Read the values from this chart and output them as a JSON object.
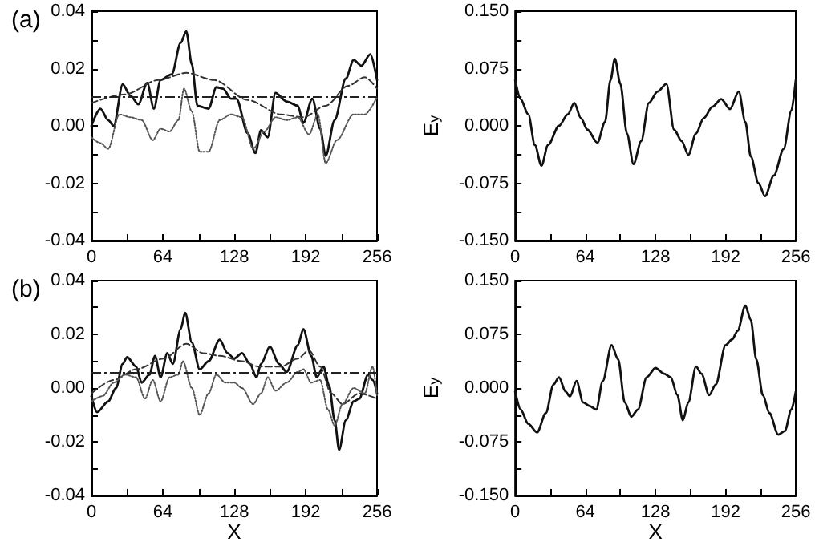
{
  "chart_data": [
    {
      "type": "line",
      "title": "(a)",
      "marker": "none",
      "xlim": [
        0,
        256
      ],
      "ylim": [
        -0.04,
        0.04
      ],
      "xticks": [
        0,
        {
          "value": 32,
          "label": null
        },
        64,
        {
          "value": 96,
          "label": null
        },
        128,
        {
          "value": 160,
          "label": null
        },
        192,
        {
          "value": 224,
          "label": null
        },
        256
      ],
      "yticks": [
        {
          "value": -0.04,
          "label": "-0.04"
        },
        {
          "value": -0.03,
          "label": null
        },
        {
          "value": -0.02,
          "label": "-0.02"
        },
        {
          "value": -0.01,
          "label": null
        },
        {
          "value": 0,
          "label": "0.00"
        },
        {
          "value": 0.01,
          "label": null
        },
        {
          "value": 0.02,
          "label": "0.02"
        },
        {
          "value": 0.03,
          "label": null
        },
        {
          "value": 0.04,
          "label": "0.04"
        }
      ],
      "ref_lines": [
        {
          "axis": "y",
          "value": 0.01,
          "color": "#222222",
          "line_style": "dashed"
        }
      ],
      "series": [
        {
          "color": "#111111",
          "line_style": "solid",
          "x": [
            0,
            8,
            15,
            20,
            28,
            35,
            42,
            50,
            56,
            62,
            72,
            80,
            85,
            90,
            95,
            105,
            112,
            118,
            125,
            130,
            140,
            147,
            152,
            158,
            165,
            175,
            185,
            190,
            198,
            205,
            210,
            218,
            228,
            235,
            242,
            250,
            256
          ],
          "values": [
            0.0,
            0.006,
            0.002,
            0.0,
            0.0145,
            0.0105,
            0.0075,
            0.015,
            0.006,
            0.016,
            0.018,
            0.029,
            0.033,
            0.0215,
            0.007,
            0.006,
            0.0135,
            0.013,
            0.0095,
            0.0095,
            -0.0025,
            -0.0095,
            -0.0015,
            -0.004,
            0.0115,
            0.0085,
            0.007,
            0.001,
            0.0095,
            -0.001,
            -0.0105,
            0.002,
            0.0165,
            0.023,
            0.021,
            0.025,
            0.016
          ]
        },
        {
          "color": "#333333",
          "line_style": "dashed",
          "x": [
            0,
            30,
            60,
            85,
            110,
            140,
            170,
            190,
            210,
            230,
            245,
            256
          ],
          "values": [
            0.008,
            0.011,
            0.016,
            0.0185,
            0.016,
            0.009,
            0.004,
            0.003,
            0.007,
            0.014,
            0.017,
            0.013
          ]
        },
        {
          "color": "#555555",
          "line_style": "dotted",
          "x": [
            0,
            8,
            15,
            25,
            35,
            45,
            55,
            62,
            70,
            78,
            83,
            90,
            97,
            105,
            115,
            125,
            135,
            145,
            155,
            165,
            175,
            185,
            195,
            203,
            210,
            220,
            235,
            245,
            256
          ],
          "values": [
            -0.004,
            -0.006,
            -0.008,
            0.004,
            0.003,
            0.002,
            -0.005,
            -0.001,
            -0.002,
            0.002,
            0.013,
            0.005,
            -0.009,
            -0.009,
            0.002,
            0.004,
            0.003,
            -0.008,
            -0.002,
            0.003,
            0.002,
            0.003,
            -0.003,
            0.004,
            -0.013,
            -0.005,
            0.004,
            0.004,
            0.01
          ]
        }
      ]
    },
    {
      "type": "line",
      "ylabel": "E$_{y}$",
      "marker": "none",
      "xlim": [
        0,
        256
      ],
      "ylim": [
        -0.15,
        0.15
      ],
      "xticks": [
        0,
        {
          "value": 32,
          "label": null
        },
        64,
        {
          "value": 96,
          "label": null
        },
        128,
        {
          "value": 160,
          "label": null
        },
        192,
        {
          "value": 224,
          "label": null
        },
        256
      ],
      "yticks": [
        {
          "value": -0.15,
          "label": "-0.150"
        },
        {
          "value": -0.1125,
          "label": null
        },
        {
          "value": -0.075,
          "label": "-0.075"
        },
        {
          "value": -0.0375,
          "label": null
        },
        {
          "value": 0,
          "label": "0.000"
        },
        {
          "value": 0.0375,
          "label": null
        },
        {
          "value": 0.075,
          "label": "0.075"
        },
        {
          "value": 0.1125,
          "label": null
        },
        {
          "value": 0.15,
          "label": "0.150"
        }
      ],
      "series": [
        {
          "color": "#111111",
          "line_style": "solid",
          "x": [
            0,
            5,
            12,
            18,
            24,
            30,
            40,
            48,
            54,
            60,
            66,
            75,
            82,
            87,
            91,
            96,
            102,
            108,
            115,
            122,
            130,
            138,
            145,
            152,
            158,
            165,
            172,
            180,
            188,
            196,
            204,
            210,
            215,
            222,
            228,
            236,
            245,
            252,
            256
          ],
          "values": [
            0.06,
            0.035,
            0.015,
            -0.025,
            -0.052,
            -0.025,
            0.0,
            0.015,
            0.03,
            0.01,
            -0.005,
            -0.022,
            0.005,
            0.06,
            0.088,
            0.055,
            -0.01,
            -0.05,
            -0.02,
            0.03,
            0.045,
            0.055,
            -0.005,
            -0.02,
            -0.038,
            -0.01,
            0.01,
            0.025,
            0.035,
            0.022,
            0.045,
            0.005,
            -0.04,
            -0.075,
            -0.092,
            -0.065,
            -0.03,
            0.02,
            0.06
          ]
        }
      ]
    },
    {
      "type": "line",
      "title": "(b)",
      "xlabel": "X",
      "marker": "none",
      "xlim": [
        0,
        256
      ],
      "ylim": [
        -0.04,
        0.04
      ],
      "xticks": [
        0,
        {
          "value": 32,
          "label": null
        },
        64,
        {
          "value": 96,
          "label": null
        },
        128,
        {
          "value": 160,
          "label": null
        },
        192,
        {
          "value": 224,
          "label": null
        },
        256
      ],
      "yticks": [
        {
          "value": -0.04,
          "label": "-0.04"
        },
        {
          "value": -0.03,
          "label": null
        },
        {
          "value": -0.02,
          "label": "-0.02"
        },
        {
          "value": -0.01,
          "label": null
        },
        {
          "value": 0,
          "label": "0.00"
        },
        {
          "value": 0.01,
          "label": null
        },
        {
          "value": 0.02,
          "label": "0.02"
        },
        {
          "value": 0.03,
          "label": null
        },
        {
          "value": 0.04,
          "label": "0.04"
        }
      ],
      "ref_lines": [
        {
          "axis": "y",
          "value": 0.006,
          "color": "#222222",
          "line_style": "dashed"
        }
      ],
      "series": [
        {
          "color": "#111111",
          "line_style": "solid",
          "x": [
            0,
            5,
            15,
            22,
            28,
            32,
            40,
            45,
            52,
            57,
            62,
            68,
            73,
            80,
            84,
            90,
            97,
            105,
            115,
            122,
            128,
            135,
            142,
            148,
            152,
            160,
            168,
            175,
            185,
            190,
            197,
            202,
            208,
            213,
            218,
            222,
            228,
            235,
            240,
            248,
            252,
            256
          ],
          "values": [
            -0.003,
            -0.009,
            -0.005,
            0.0,
            0.009,
            0.0115,
            0.008,
            0.002,
            0.005,
            0.012,
            0.004,
            0.013,
            0.009,
            0.022,
            0.028,
            0.017,
            0.007,
            0.01,
            0.018,
            0.013,
            0.011,
            0.013,
            0.009,
            0.004,
            0.009,
            0.0155,
            0.009,
            0.006,
            0.016,
            0.022,
            0.012,
            0.004,
            0.008,
            0.001,
            -0.012,
            -0.023,
            -0.012,
            -0.005,
            -0.004,
            0.005,
            0.003,
            -0.002
          ]
        },
        {
          "color": "#333333",
          "line_style": "dashed",
          "x": [
            0,
            20,
            40,
            65,
            85,
            100,
            115,
            135,
            150,
            170,
            185,
            195,
            205,
            215,
            225,
            240,
            256
          ],
          "values": [
            -0.002,
            0.003,
            0.007,
            0.011,
            0.0165,
            0.013,
            0.012,
            0.01,
            0.008,
            0.008,
            0.011,
            0.014,
            0.008,
            -0.002,
            -0.006,
            -0.002,
            -0.004
          ]
        },
        {
          "color": "#555555",
          "line_style": "dotted",
          "x": [
            0,
            10,
            20,
            30,
            40,
            48,
            55,
            62,
            70,
            78,
            82,
            90,
            97,
            105,
            112,
            120,
            128,
            135,
            145,
            152,
            158,
            165,
            175,
            185,
            190,
            197,
            205,
            212,
            218,
            225,
            235,
            245,
            252,
            256
          ],
          "values": [
            -0.005,
            -0.003,
            0.002,
            0.005,
            0.004,
            -0.004,
            0.003,
            -0.005,
            0.004,
            0.005,
            0.01,
            0.0,
            -0.01,
            -0.002,
            0.005,
            0.002,
            0.002,
            0.0,
            -0.006,
            -0.002,
            0.004,
            -0.001,
            0.002,
            0.006,
            0.007,
            0.002,
            0.003,
            -0.008,
            -0.014,
            -0.006,
            0.0,
            -0.002,
            0.008,
            -0.003
          ]
        }
      ]
    },
    {
      "type": "line",
      "xlabel": "X",
      "ylabel": "E$_{y}$",
      "marker": "none",
      "xlim": [
        0,
        256
      ],
      "ylim": [
        -0.15,
        0.15
      ],
      "xticks": [
        0,
        {
          "value": 32,
          "label": null
        },
        64,
        {
          "value": 96,
          "label": null
        },
        128,
        {
          "value": 160,
          "label": null
        },
        192,
        {
          "value": 224,
          "label": null
        },
        256
      ],
      "yticks": [
        {
          "value": -0.15,
          "label": "-0.150"
        },
        {
          "value": -0.1125,
          "label": null
        },
        {
          "value": -0.075,
          "label": "-0.075"
        },
        {
          "value": -0.0375,
          "label": null
        },
        {
          "value": 0,
          "label": "0.000"
        },
        {
          "value": 0.0375,
          "label": null
        },
        {
          "value": 0.075,
          "label": "0.075"
        },
        {
          "value": 0.1125,
          "label": null
        },
        {
          "value": 0.15,
          "label": "0.150"
        }
      ],
      "series": [
        {
          "color": "#111111",
          "line_style": "solid",
          "x": [
            0,
            5,
            12,
            20,
            28,
            35,
            40,
            46,
            50,
            56,
            62,
            68,
            74,
            80,
            88,
            94,
            100,
            106,
            112,
            120,
            128,
            136,
            142,
            148,
            153,
            158,
            165,
            170,
            177,
            183,
            192,
            198,
            203,
            210,
            215,
            220,
            226,
            232,
            240,
            246,
            252,
            256
          ],
          "values": [
            -0.005,
            -0.03,
            -0.05,
            -0.062,
            -0.035,
            0.005,
            0.015,
            -0.005,
            -0.012,
            0.01,
            -0.02,
            -0.025,
            -0.03,
            0.01,
            0.06,
            0.04,
            -0.02,
            -0.04,
            -0.03,
            0.015,
            0.028,
            0.02,
            0.015,
            -0.01,
            -0.045,
            -0.02,
            0.03,
            0.02,
            -0.01,
            0.005,
            0.06,
            0.068,
            0.08,
            0.115,
            0.095,
            0.04,
            -0.01,
            -0.035,
            -0.065,
            -0.06,
            -0.03,
            -0.005
          ]
        }
      ]
    }
  ]
}
